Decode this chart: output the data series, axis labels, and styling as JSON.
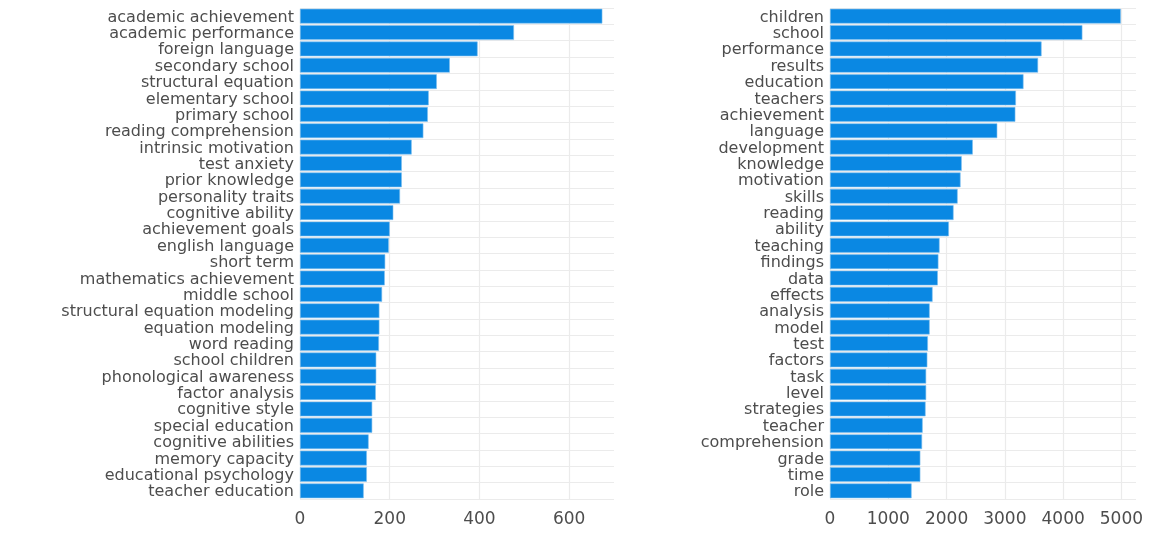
{
  "chart_data": [
    {
      "type": "bar",
      "orientation": "horizontal",
      "grid": true,
      "categories": [
        "academic achievement",
        "academic performance",
        "foreign language",
        "secondary school",
        "structural equation",
        "elementary school",
        "primary school",
        "reading comprehension",
        "intrinsic motivation",
        "test anxiety",
        "prior knowledge",
        "personality traits",
        "cognitive ability",
        "achievement goals",
        "english language",
        "short term",
        "mathematics achievement",
        "middle school",
        "structural equation modeling",
        "equation modeling",
        "word reading",
        "school children",
        "phonological awareness",
        "factor analysis",
        "cognitive style",
        "special education",
        "cognitive abilities",
        "memory capacity",
        "educational psychology",
        "teacher education"
      ],
      "values": [
        674,
        477,
        396,
        334,
        305,
        287,
        285,
        275,
        249,
        227,
        227,
        223,
        208,
        200,
        198,
        190,
        189,
        183,
        177,
        177,
        176,
        170,
        170,
        169,
        161,
        161,
        153,
        149,
        149,
        142
      ],
      "color": "#0a88e3",
      "xlim": [
        0,
        700
      ],
      "xticks": [
        0,
        200,
        400,
        600
      ]
    },
    {
      "type": "bar",
      "orientation": "horizontal",
      "grid": true,
      "categories": [
        "children",
        "school",
        "performance",
        "results",
        "education",
        "teachers",
        "achievement",
        "language",
        "development",
        "knowledge",
        "motivation",
        "skills",
        "reading",
        "ability",
        "teaching",
        "findings",
        "data",
        "effects",
        "analysis",
        "model",
        "test",
        "factors",
        "task",
        "level",
        "strategies",
        "teacher",
        "comprehension",
        "grade",
        "time",
        "role"
      ],
      "values": [
        4990,
        4330,
        3630,
        3570,
        3320,
        3190,
        3180,
        2870,
        2450,
        2260,
        2240,
        2190,
        2120,
        2040,
        1880,
        1860,
        1850,
        1760,
        1710,
        1710,
        1680,
        1670,
        1650,
        1650,
        1640,
        1590,
        1580,
        1550,
        1550,
        1400
      ],
      "color": "#0a88e3",
      "xlim": [
        0,
        5250
      ],
      "xticks": [
        0,
        1000,
        2000,
        3000,
        4000,
        5000
      ]
    }
  ]
}
